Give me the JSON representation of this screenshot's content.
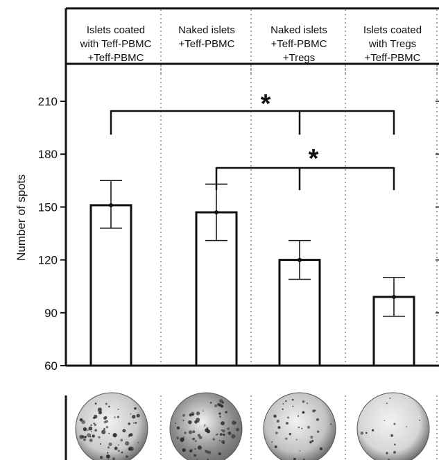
{
  "chart_data": {
    "type": "bar",
    "categories": [
      [
        "Islets coated",
        "with Teff-PBMC",
        "+Teff-PBMC"
      ],
      [
        "Naked islets",
        "+Teff-PBMC"
      ],
      [
        "Naked islets",
        "+Teff-PBMC",
        "+Tregs"
      ],
      [
        "Islets coated",
        "with Tregs",
        "+Teff-PBMC"
      ]
    ],
    "values": [
      151,
      147,
      120,
      99
    ],
    "error_low": [
      138,
      131,
      109,
      88
    ],
    "error_high": [
      165,
      163,
      131,
      110
    ],
    "ylabel": "Number of spots",
    "ylim": [
      60,
      210
    ],
    "yticks": [
      60,
      90,
      120,
      150,
      180,
      210
    ],
    "significance": [
      {
        "from": 0,
        "to": [
          2,
          3
        ],
        "label": "*"
      },
      {
        "from": 1,
        "to": [
          2,
          3
        ],
        "label": "*"
      }
    ],
    "well_images": [
      {
        "category": 0,
        "spot_density": "high",
        "dish_shade": "#c9c9c9"
      },
      {
        "category": 1,
        "spot_density": "high",
        "dish_shade": "#8a8a8a"
      },
      {
        "category": 2,
        "spot_density": "medium",
        "dish_shade": "#c2c2c2"
      },
      {
        "category": 3,
        "spot_density": "low",
        "dish_shade": "#d6d6d6"
      }
    ]
  }
}
